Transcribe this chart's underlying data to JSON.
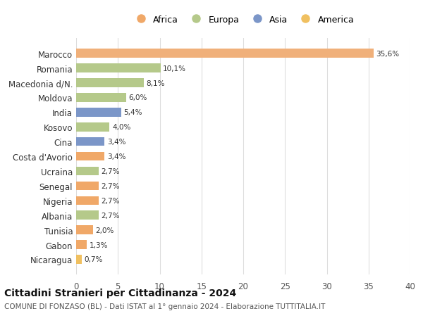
{
  "countries": [
    "Nicaragua",
    "Gabon",
    "Tunisia",
    "Albania",
    "Nigeria",
    "Senegal",
    "Ucraina",
    "Costa d'Avorio",
    "Cina",
    "Kosovo",
    "India",
    "Moldova",
    "Macedonia d/N.",
    "Romania",
    "Marocco"
  ],
  "values": [
    0.7,
    1.3,
    2.0,
    2.7,
    2.7,
    2.7,
    2.7,
    3.4,
    3.4,
    4.0,
    5.4,
    6.0,
    8.1,
    10.1,
    35.6
  ],
  "labels": [
    "0,7%",
    "1,3%",
    "2,0%",
    "2,7%",
    "2,7%",
    "2,7%",
    "2,7%",
    "3,4%",
    "3,4%",
    "4,0%",
    "5,4%",
    "6,0%",
    "8,1%",
    "10,1%",
    "35,6%"
  ],
  "colors": [
    "#f0c060",
    "#f0a868",
    "#f0a868",
    "#b5c98a",
    "#f0a868",
    "#f0a868",
    "#b5c98a",
    "#f0a868",
    "#7b96c8",
    "#b5c98a",
    "#7b96c8",
    "#b5c98a",
    "#b5c98a",
    "#b5c98a",
    "#f0b07a"
  ],
  "legend_labels": [
    "Africa",
    "Europa",
    "Asia",
    "America"
  ],
  "legend_colors": [
    "#f0a868",
    "#b5c98a",
    "#7b96c8",
    "#f0c060"
  ],
  "title": "Cittadini Stranieri per Cittadinanza - 2024",
  "subtitle": "COMUNE DI FONZASO (BL) - Dati ISTAT al 1° gennaio 2024 - Elaborazione TUTTITALIA.IT",
  "xlim": [
    0,
    40
  ],
  "xticks": [
    0,
    5,
    10,
    15,
    20,
    25,
    30,
    35,
    40
  ],
  "bg_color": "#ffffff",
  "grid_color": "#dddddd",
  "bar_height": 0.6
}
